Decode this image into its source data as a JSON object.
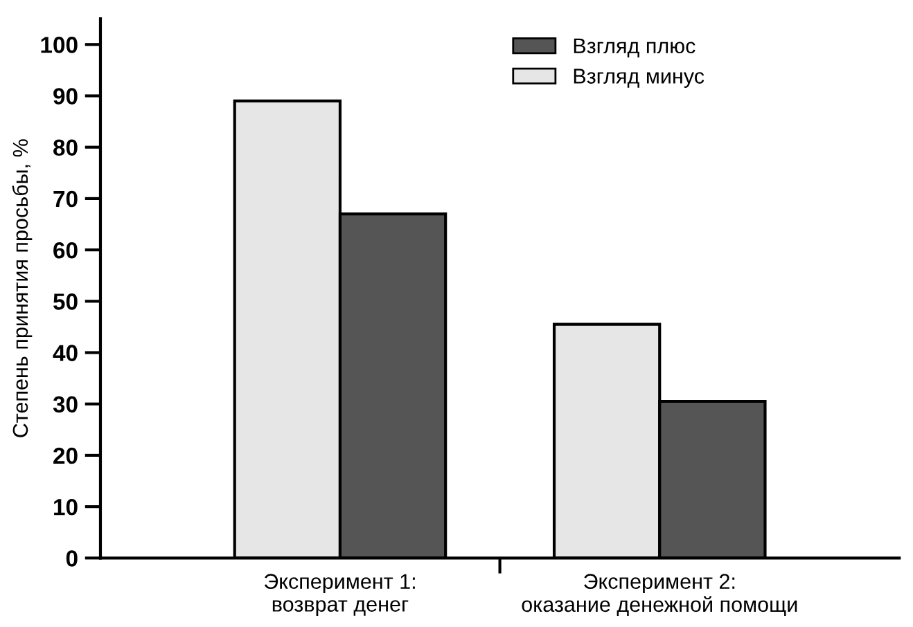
{
  "chart_data": {
    "type": "bar",
    "ylabel": "Степень принятия просьбы, %",
    "categories": [
      "Эксперимент 1:\nвозврат денег",
      "Эксперимент 2:\nоказание денежной помощи"
    ],
    "series": [
      {
        "name": "Взгляд минус",
        "color": "#e6e6e6",
        "values": [
          89,
          45.5
        ]
      },
      {
        "name": "Взгляд плюс",
        "color": "#555555",
        "values": [
          67,
          30.5
        ]
      }
    ],
    "ylim": [
      0,
      105
    ],
    "yticks": [
      0,
      10,
      20,
      30,
      40,
      50,
      60,
      70,
      80,
      90,
      100
    ],
    "grid": false,
    "legend": "top right"
  }
}
